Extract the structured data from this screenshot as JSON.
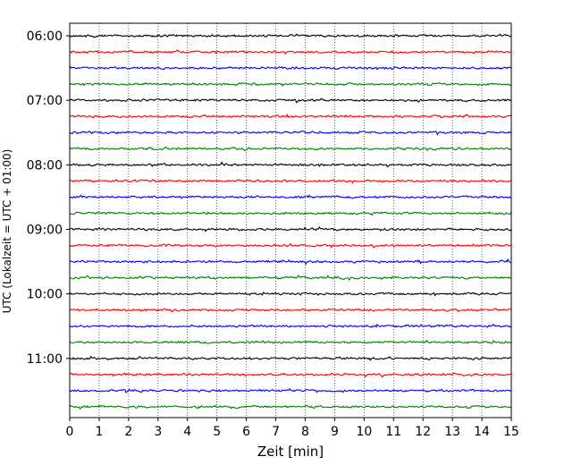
{
  "chart_data": {
    "type": "line",
    "subtype": "helicorder-seismogram",
    "xlabel": "Zeit  [min]",
    "ylabel": "UTC (Lokalzeit = UTC + 01:00)",
    "xlim": [
      0,
      15
    ],
    "x_ticks": [
      "0",
      "1",
      "2",
      "3",
      "4",
      "5",
      "6",
      "7",
      "8",
      "9",
      "10",
      "11",
      "12",
      "13",
      "14",
      "15"
    ],
    "y_tick_labels": [
      "06:00",
      "07:00",
      "08:00",
      "09:00",
      "10:00",
      "11:00"
    ],
    "trace_start_times": [
      "06:00",
      "06:15",
      "06:30",
      "06:45",
      "07:00",
      "07:15",
      "07:30",
      "07:45",
      "08:00",
      "08:15",
      "08:30",
      "08:45",
      "09:00",
      "09:15",
      "09:30",
      "09:45",
      "10:00",
      "10:15",
      "10:30",
      "10:45",
      "11:00",
      "11:15",
      "11:30",
      "11:45"
    ],
    "trace_colors": [
      "#000000",
      "#ff0000",
      "#0000ff",
      "#008000"
    ],
    "grid": "x-dotted",
    "legend": "none"
  }
}
